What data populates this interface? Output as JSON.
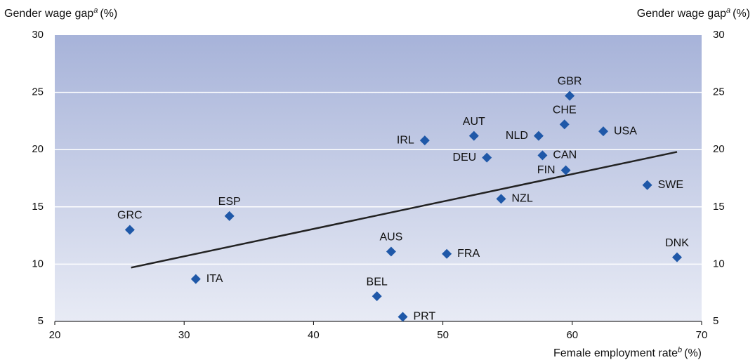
{
  "chart_data": {
    "type": "scatter",
    "y_label": "Gender wage gap",
    "y_label_note": "a",
    "y_label_unit": "(%)",
    "x_label": "Female employment rate",
    "x_label_note": "b",
    "x_label_unit": "(%)",
    "labels": [
      "GRC",
      "ESP",
      "ITA",
      "AUS",
      "BEL",
      "PRT",
      "FRA",
      "IRL",
      "AUT",
      "DEU",
      "NZL",
      "NLD",
      "CHE",
      "GBR",
      "CAN",
      "FIN",
      "USA",
      "SWE",
      "DNK"
    ],
    "x": [
      25.8,
      33.5,
      30.9,
      46.0,
      44.9,
      46.9,
      50.3,
      48.6,
      52.4,
      53.4,
      54.5,
      57.4,
      59.4,
      59.8,
      57.7,
      59.5,
      62.4,
      65.8,
      68.1
    ],
    "values": [
      13.0,
      14.2,
      8.7,
      11.1,
      7.2,
      5.4,
      10.9,
      20.8,
      21.2,
      19.3,
      15.7,
      21.2,
      22.2,
      24.7,
      19.5,
      18.2,
      21.6,
      16.9,
      10.6
    ],
    "color": "#1f58a8",
    "trend": {
      "x": [
        25.9,
        68.1
      ],
      "values": [
        9.7,
        19.8
      ]
    },
    "xlim": [
      20,
      70
    ],
    "xticks": [
      20,
      30,
      40,
      50,
      60,
      70
    ],
    "ylim": [
      5,
      30
    ],
    "yticks": [
      5,
      10,
      15,
      20,
      25,
      30
    ],
    "grid": true
  }
}
